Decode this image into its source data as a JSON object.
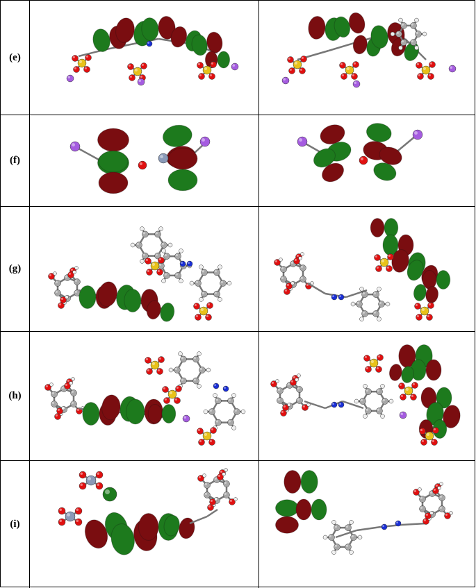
{
  "rows": [
    {
      "label": "(e)"
    },
    {
      "label": "(f)"
    },
    {
      "label": "(g)"
    },
    {
      "label": "(h)"
    },
    {
      "label": "(i)"
    }
  ],
  "colors": {
    "lobe_positive": "#1d7a1d",
    "lobe_negative": "#7a0d10",
    "carbon": "#a8a8a8",
    "hydrogen": "#eeeeee",
    "oxygen": "#e01010",
    "nitrogen": "#1a2fd6",
    "sulfur": "#e8c21a",
    "potassium": "#a55ce0",
    "metal": "#8a9ab8"
  }
}
